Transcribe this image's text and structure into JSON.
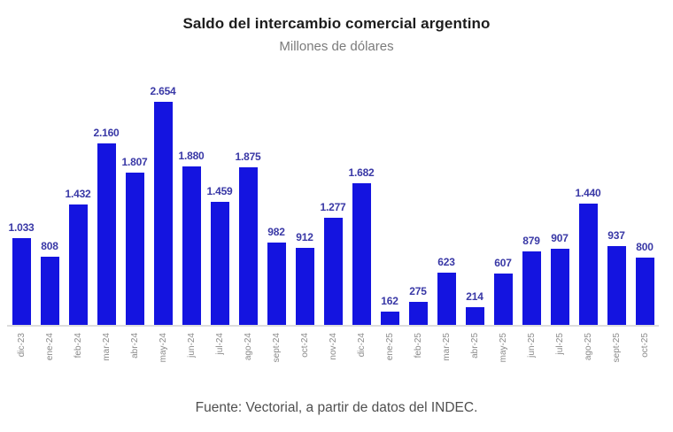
{
  "chart_data": {
    "type": "bar",
    "title": "Saldo del intercambio comercial argentino",
    "subtitle": "Millones de dólares",
    "categories": [
      "dic-23",
      "ene-24",
      "feb-24",
      "mar-24",
      "abr-24",
      "may-24",
      "jun-24",
      "jul-24",
      "ago-24",
      "sept-24",
      "oct-24",
      "nov-24",
      "dic-24",
      "ene-25",
      "feb-25",
      "mar-25",
      "abr-25",
      "may-25",
      "jun-25",
      "jul-25",
      "ago-25",
      "sept-25",
      "oct-25"
    ],
    "values": [
      1033,
      808,
      1432,
      2160,
      1807,
      2654,
      1880,
      1459,
      1875,
      982,
      912,
      1277,
      1682,
      162,
      275,
      623,
      214,
      607,
      879,
      907,
      1440,
      937,
      800
    ],
    "value_labels": [
      "1.033",
      "808",
      "1.432",
      "2.160",
      "1.807",
      "2.654",
      "1.880",
      "1.459",
      "1.875",
      "982",
      "912",
      "1.277",
      "1.682",
      "162",
      "275",
      "623",
      "214",
      "607",
      "879",
      "907",
      "1.440",
      "937",
      "800"
    ],
    "xlabel": "",
    "ylabel": "",
    "ylim": [
      0,
      2654
    ],
    "grid": false,
    "legend": false,
    "bar_color": "#1414e0",
    "value_label_color": "#3938a6",
    "tick_label_color": "#8a8a8a"
  },
  "footer": {
    "source": "Fuente: Vectorial, a partir de datos del INDEC."
  }
}
